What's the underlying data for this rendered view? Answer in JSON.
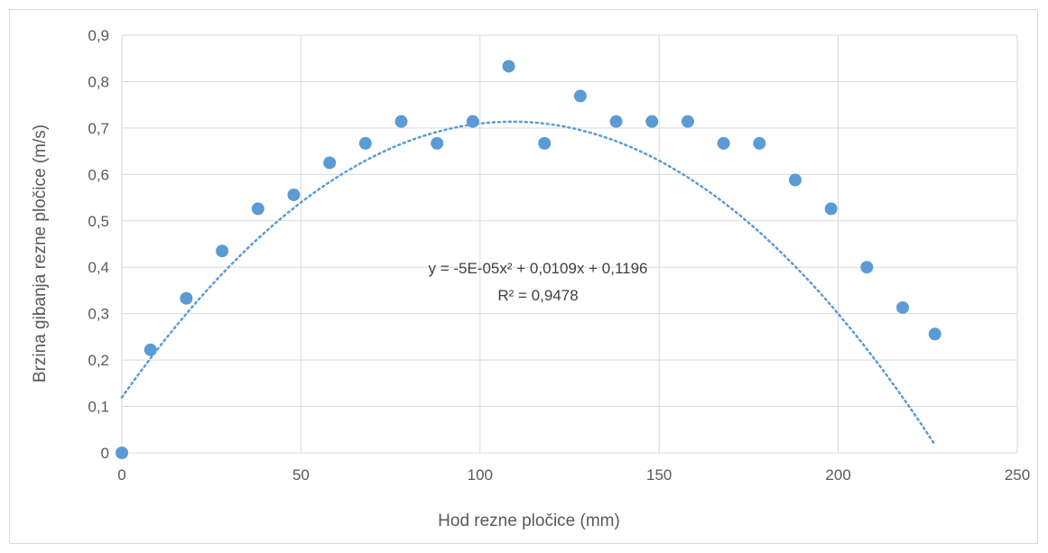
{
  "chart_data": {
    "type": "scatter",
    "xlabel": "Hod rezne pločice (mm)",
    "ylabel": "Brzina gibanja rezne pločice (m/s)",
    "xlim": [
      0,
      250
    ],
    "ylim": [
      0,
      0.9
    ],
    "x_ticks": [
      0,
      50,
      100,
      150,
      200,
      250
    ],
    "y_ticks": [
      0,
      0.1,
      0.2,
      0.3,
      0.4,
      0.5,
      0.6,
      0.7,
      0.8,
      0.9
    ],
    "x_tick_labels": [
      "0",
      "50",
      "100",
      "150",
      "200",
      "250"
    ],
    "y_tick_labels": [
      "0",
      "0,1",
      "0,2",
      "0,3",
      "0,4",
      "0,5",
      "0,6",
      "0,7",
      "0,8",
      "0,9"
    ],
    "grid": true,
    "marker_color": "#5b9bd5",
    "series": [
      {
        "x": [
          0,
          8,
          18,
          28,
          38,
          48,
          58,
          68,
          78,
          88,
          98,
          108,
          118,
          128,
          138,
          148,
          158,
          168,
          178,
          188,
          198,
          208,
          218,
          227
        ],
        "y": [
          0,
          0.222,
          0.333,
          0.435,
          0.526,
          0.556,
          0.625,
          0.667,
          0.714,
          0.667,
          0.714,
          0.833,
          0.667,
          0.769,
          0.714,
          0.714,
          0.714,
          0.667,
          0.667,
          0.588,
          0.526,
          0.4,
          0.313,
          0.256
        ]
      }
    ],
    "trendline": {
      "type": "polynomial",
      "order": 2,
      "coefficients": [
        -5e-05,
        0.0109,
        0.1196
      ],
      "equation": "y = -5E-05x² + 0,0109x + 0,1196",
      "r_squared": "R² = 0,9478",
      "style": "dotted"
    }
  }
}
